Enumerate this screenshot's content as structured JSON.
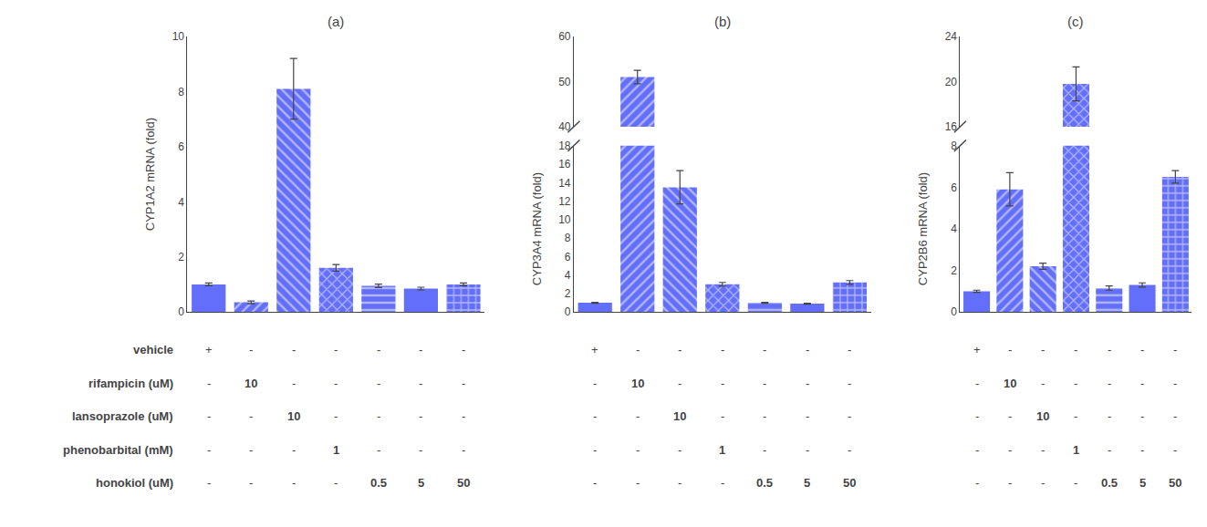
{
  "chart_data": [
    {
      "type": "bar",
      "title": "(a)",
      "y_label": "CYP1A2 mRNA (fold)",
      "categories": [
        null,
        null,
        null,
        null,
        null,
        null,
        null
      ],
      "values": [
        1.0,
        0.35,
        8.1,
        1.6,
        0.95,
        0.85,
        1.0
      ],
      "errors": [
        0.05,
        0.05,
        1.1,
        0.12,
        0.06,
        0.05,
        0.05
      ],
      "color": "#636efa",
      "ylim": [
        0,
        10
      ],
      "yticks": [
        0,
        2,
        4,
        6,
        8,
        10
      ],
      "grid": false,
      "tick_labels": "y"
    },
    {
      "type": "bar",
      "title": "(b)",
      "y_label": "CYP3A4 mRNA (fold)",
      "categories": [
        null,
        null,
        null,
        null,
        null,
        null,
        null
      ],
      "values": [
        1.0,
        51.0,
        13.5,
        3.0,
        1.0,
        0.9,
        3.2
      ],
      "errors": [
        0.05,
        1.5,
        1.8,
        0.2,
        0.05,
        0.05,
        0.2
      ],
      "color": "#636efa",
      "ylim": [
        [
          0,
          18
        ],
        [
          40,
          60
        ]
      ],
      "yticks": [
        [
          0,
          2,
          4,
          6,
          8,
          10,
          12,
          14,
          16,
          18
        ],
        [
          40,
          50,
          60
        ]
      ],
      "grid": false,
      "tick_labels": "y"
    },
    {
      "type": "bar",
      "title": "(c)",
      "y_label": "CYP2B6 mRNA (fold)",
      "categories": [
        null,
        null,
        null,
        null,
        null,
        null,
        null
      ],
      "values": [
        1.0,
        5.9,
        2.2,
        19.8,
        1.15,
        1.3,
        6.5
      ],
      "errors": [
        0.05,
        0.8,
        0.15,
        1.5,
        0.1,
        0.1,
        0.3
      ],
      "color": "#636efa",
      "ylim": [
        [
          0,
          8
        ],
        [
          16,
          24
        ]
      ],
      "yticks": [
        [
          0,
          2,
          4,
          6,
          8
        ],
        [
          16,
          20,
          24
        ]
      ],
      "grid": false,
      "tick_labels": "y"
    }
  ],
  "table": {
    "row_labels": [
      "vehicle",
      "rifampicin (uM)",
      "lansoprazole (uM)",
      "phenobarbital (mM)",
      "honokiol (uM)"
    ],
    "rows": [
      [
        "+",
        "-",
        "-",
        "-",
        "-",
        "-",
        "-"
      ],
      [
        "-",
        "10",
        "-",
        "-",
        "-",
        "-",
        "-"
      ],
      [
        "-",
        "-",
        "10",
        "-",
        "-",
        "-",
        "-"
      ],
      [
        "-",
        "-",
        "-",
        "1",
        "-",
        "-",
        "-"
      ],
      [
        "-",
        "-",
        "-",
        "-",
        "0.5",
        "5",
        "50"
      ]
    ]
  }
}
